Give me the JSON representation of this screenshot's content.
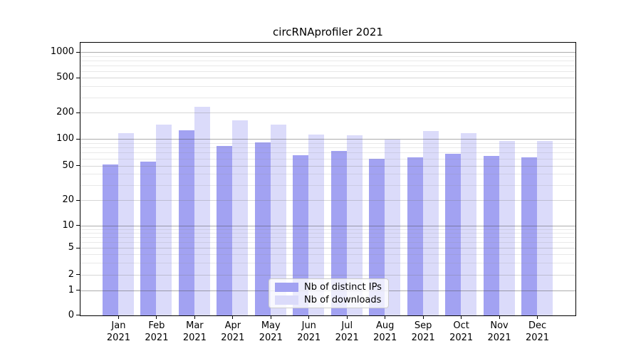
{
  "chart_data": {
    "type": "bar",
    "title": "circRNAprofiler 2021",
    "categories": [
      "Jan 2021",
      "Feb 2021",
      "Mar 2021",
      "Apr 2021",
      "May 2021",
      "Jun 2021",
      "Jul 2021",
      "Aug 2021",
      "Sep 2021",
      "Oct 2021",
      "Nov 2021",
      "Dec 2021"
    ],
    "series": [
      {
        "name": "Nb of distinct IPs",
        "color": "#a2a2f2",
        "values": [
          52,
          56,
          125,
          83,
          91,
          66,
          73,
          60,
          62,
          68,
          64,
          62
        ]
      },
      {
        "name": "Nb of downloads",
        "color": "#dbdbfa",
        "values": [
          116,
          146,
          233,
          164,
          147,
          113,
          110,
          99,
          122,
          117,
          95,
          95
        ]
      }
    ],
    "xlabel": "",
    "ylabel": "",
    "yscale": "pseudo-log",
    "yticks": [
      0,
      1,
      2,
      5,
      10,
      20,
      50,
      100,
      200,
      500,
      1000
    ],
    "ylim": [
      0,
      1300
    ],
    "grid": "horizontal, major and minor",
    "legend_position": "lower center"
  }
}
